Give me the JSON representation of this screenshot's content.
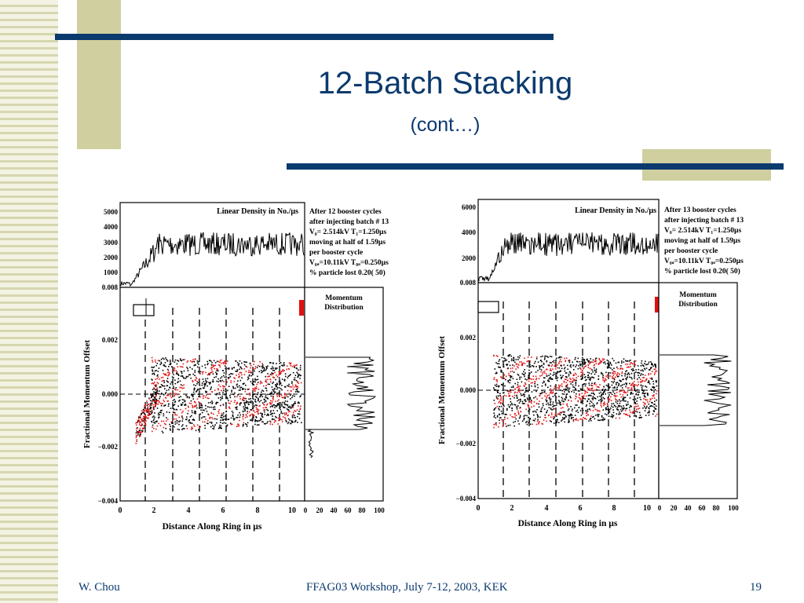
{
  "slide": {
    "title": "12-Batch Stacking",
    "subtitle": "(cont…)"
  },
  "theme": {
    "title_color": "#0b3a6e",
    "bar_color": "#0b3a6e",
    "accent_block_color": "#cfcf9f",
    "stripe_color": "#d6d6b0"
  },
  "footer": {
    "author": "W. Chou",
    "event": "FFAG03 Workshop, July 7-12, 2003, KEK",
    "page_number": "19"
  },
  "figures": [
    {
      "top_panel_label": "Linear Density in No./µs",
      "top_y_ticks": [
        "5000",
        "4000",
        "3000",
        "2000",
        "1000",
        "0.008"
      ],
      "info_lines": [
        "After 12 booster cycles",
        "after injecting batch # 13",
        "V₀= 2.514kV  T₁=1.250µs",
        "moving at half of 1.59µs",
        "per booster cycle",
        "V₀ₐ=10.11kV T₀ₐ=0.250µs",
        "% particle lost   0.20(  50)"
      ],
      "ylabel": "Fractional Momentum Offset",
      "y_ticks": [
        "0.002",
        "0.000",
        "−0.002",
        "−0.004"
      ],
      "xlabel": "Distance Along Ring in µs",
      "x_ticks": [
        "0",
        "2",
        "4",
        "6",
        "8",
        "10"
      ],
      "side_label_1": "Momentum",
      "side_label_2": "Distribution",
      "side_ticks": [
        "0",
        "20",
        "40",
        "60",
        "80",
        "100"
      ]
    },
    {
      "top_panel_label": "Linear Density in No./µs",
      "top_y_ticks": [
        "6000",
        "4000",
        "2000",
        "0.008"
      ],
      "info_lines": [
        "After 13 booster cycles",
        "after injecting batch # 13",
        "V₀= 2.514kV  T₁=1.250µs",
        "moving at half of 1.59µs",
        "per booster cycle",
        "V₀ₐ=10.11kV T₀ₐ=0.250µs",
        "% particle lost   0.20(  50)"
      ],
      "ylabel": "Fractional Momentum Offset",
      "y_ticks": [
        "0.002",
        "0.000",
        "−0.002",
        "−0.004"
      ],
      "xlabel": "Distance Along Ring in µs",
      "x_ticks": [
        "0",
        "2",
        "4",
        "6",
        "8",
        "10"
      ],
      "side_label_1": "Momentum",
      "side_label_2": "Distribution",
      "side_ticks": [
        "0",
        "20",
        "40",
        "60",
        "80",
        "100"
      ]
    }
  ]
}
